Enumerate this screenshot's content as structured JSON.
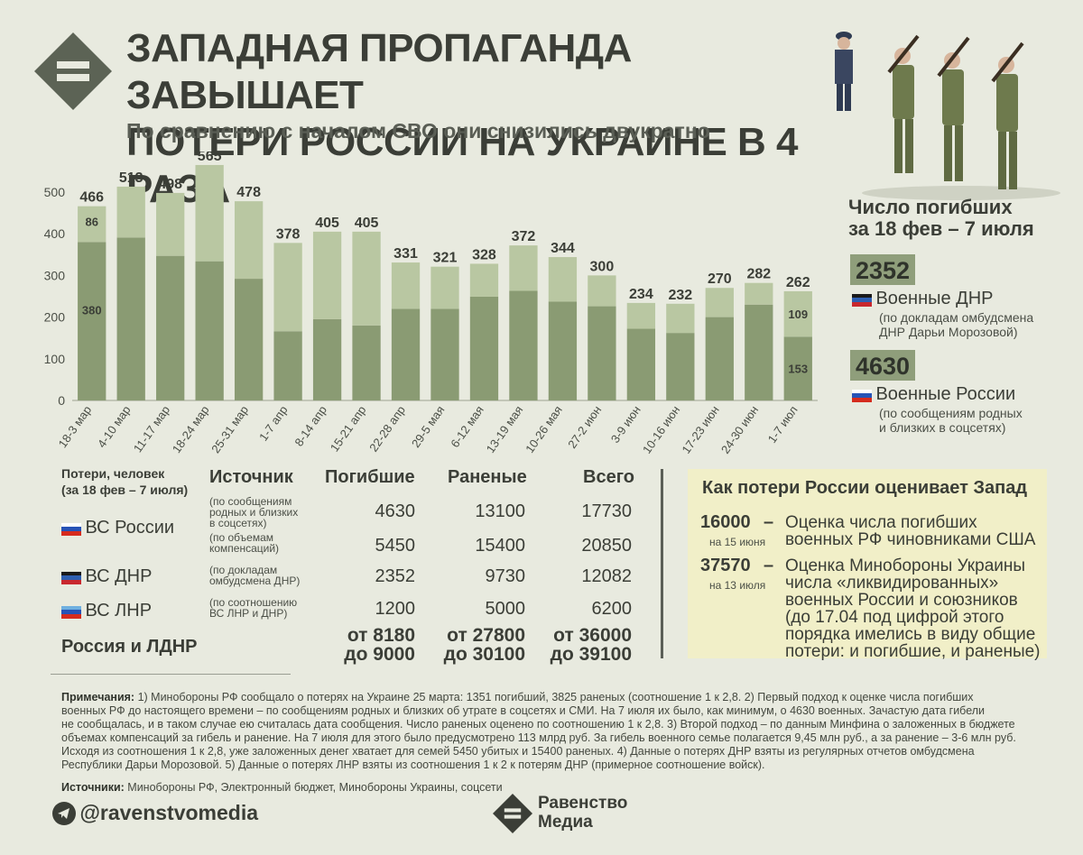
{
  "header": {
    "title_line1": "ЗАПАДНАЯ ПРОПАГАНДА ЗАВЫШАЕТ",
    "title_line2": "ПОТЕРИ РОССИИ НА УКРАИНЕ В 4 РАЗА",
    "subtitle": "По сравнению с началом СВО они снизились двукратно"
  },
  "colors": {
    "bar_dark": "#8a9b73",
    "bar_light": "#b9c7a2",
    "accent_box": "#8f9e7b",
    "note_box": "#f1efc8"
  },
  "chart_data": {
    "type": "bar",
    "stacked": true,
    "categories": [
      "18-3 мар",
      "4-10 мар",
      "11-17 мар",
      "18-24 мар",
      "25-31 мар",
      "1-7 апр",
      "8-14 апр",
      "15-21 апр",
      "22-28 апр",
      "29-5 мая",
      "6-12 мая",
      "13-19 мая",
      "10-26 мая",
      "27-2 июн",
      "3-9 июн",
      "10-16 июн",
      "17-23 июн",
      "24-30 июн",
      "1-7 июл"
    ],
    "totals": [
      466,
      513,
      498,
      565,
      478,
      378,
      405,
      405,
      331,
      321,
      328,
      372,
      344,
      300,
      234,
      232,
      270,
      282,
      262
    ],
    "series": [
      {
        "name": "нижняя часть",
        "values": [
          380,
          391,
          347,
          334,
          292,
          166,
          195,
          180,
          220,
          220,
          249,
          263,
          237,
          226,
          172,
          162,
          200,
          230,
          153
        ]
      },
      {
        "name": "верхняя часть",
        "values": [
          86,
          122,
          151,
          231,
          186,
          212,
          210,
          225,
          111,
          101,
          79,
          109,
          107,
          74,
          62,
          70,
          70,
          52,
          109
        ]
      }
    ],
    "inner_labels": {
      "first_lower": "380",
      "first_upper": "86",
      "last_lower": "153",
      "last_upper": "109"
    },
    "yticks": [
      "0",
      "100",
      "200",
      "300",
      "400",
      "500"
    ],
    "ylim": [
      0,
      580
    ]
  },
  "side": {
    "heading_line1": "Число погибших",
    "heading_line2": "за 18 фев – 7 июля",
    "dnr_number": "2352",
    "dnr_label": "Военные ДНР",
    "dnr_note_line1": "(по докладам омбудсмена",
    "dnr_note_line2": "ДНР Дарьи Морозовой)",
    "ru_number": "4630",
    "ru_label": "Военные России",
    "ru_note_line1": "(по сообщениям родных",
    "ru_note_line2": "и близких в соцсетях)"
  },
  "table": {
    "corner_line1": "Потери, человек",
    "corner_line2": "(за 18 фев – 7 июля)",
    "col_source": "Источник",
    "col_killed": "Погибшие",
    "col_wounded": "Раненые",
    "col_total": "Всего",
    "ru_label": "ВС России",
    "ru_src1_line1": "(по сообщениям",
    "ru_src1_line2": "родных и близких",
    "ru_src1_line3": "в соцсетях)",
    "ru_row1": {
      "killed": "4630",
      "wounded": "13100",
      "total": "17730"
    },
    "ru_src2_line1": "(по объемам",
    "ru_src2_line2": "компенсаций)",
    "ru_row2": {
      "killed": "5450",
      "wounded": "15400",
      "total": "20850"
    },
    "dnr_label": "ВС ДНР",
    "dnr_src_line1": "(по докладам",
    "dnr_src_line2": "омбудсмена ДНР)",
    "dnr_row": {
      "killed": "2352",
      "wounded": "9730",
      "total": "12082"
    },
    "lnr_label": "ВС ЛНР",
    "lnr_src_line1": "(по соотношению",
    "lnr_src_line2": "ВС ЛНР и ДНР)",
    "lnr_row": {
      "killed": "1200",
      "wounded": "5000",
      "total": "6200"
    },
    "sum_label": "Россия и ЛДНР",
    "sum_killed_1": "от 8180",
    "sum_killed_2": "до 9000",
    "sum_wounded_1": "от 27800",
    "sum_wounded_2": "до 30100",
    "sum_total_1": "от 36000",
    "sum_total_2": "до 39100"
  },
  "west": {
    "title": "Как потери России оценивает Запад",
    "item1_num": "16000",
    "item1_dash": "–",
    "item1_date": "на 15 июня",
    "item1_line1": "Оценка числа погибших",
    "item1_line2": "военных РФ чиновниками США",
    "item2_num": "37570",
    "item2_dash": "–",
    "item2_date": "на 13 июля",
    "item2_line1": "Оценка Минобороны Украины",
    "item2_line2": "числа «ликвидированных»",
    "item2_line3": "военных России и союзников",
    "item2_line4": "(до 17.04 под цифрой этого",
    "item2_line5": "порядка имелись в виду общие",
    "item2_line6": "потери: и погибшие, и раненые)"
  },
  "notes": {
    "notes_label": "Примечания:",
    "notes_line1": " 1) Минобороны РФ сообщало о потерях на Украине 25 марта: 1351 погибший, 3825 раненых (соотношение 1 к 2,8. 2) Первый подход к оценке числа погибших",
    "notes_line2": "военных РФ до настоящего времени – по сообщениям родных и близких об утрате в соцсетях и СМИ. На 7 июля их было, как минимум, о 4630 военных. Зачастую дата гибели",
    "notes_line3": "не сообщалась, и в таком случае ею считалась дата сообщения. Число раненых оценено по соотношению 1 к 2,8. 3) Второй подход – по данным Минфина о заложенных в бюджете",
    "notes_line4": "объемах компенсаций за гибель и ранение. На 7 июля для этого было предусмотрено 113 млрд руб. За гибель военного семье полагается 9,45 млн руб., а за ранение – 3-6 млн руб.",
    "notes_line5": "Исходя из соотношения 1 к 2,8, уже заложенных денег хватает для семей 5450 убитых и 15400 раненых. 4) Данные о потерях ДНР взяты из регулярных отчетов омбудсмена",
    "notes_line6": "Республики Дарьи Морозовой. 5) Данные о потерях ЛНР взяты из соотношения 1 к 2 к потерям ДНР (примерное соотношение войск).",
    "sources_label": "Источники:",
    "sources_text": " Минобороны РФ, Электронный бюджет, Минобороны Украины, соцсети"
  },
  "footer": {
    "handle": "@ravenstvomedia",
    "brand_line1": "Равенство",
    "brand_line2": "Медиа"
  }
}
